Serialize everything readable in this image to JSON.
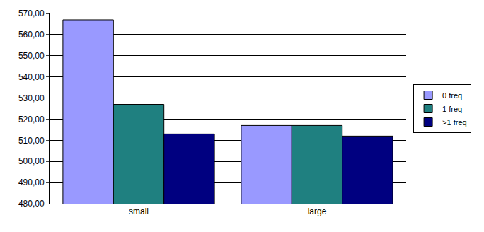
{
  "chart_data": {
    "type": "bar",
    "categories": [
      "small",
      "large"
    ],
    "series": [
      {
        "name": "0 freq",
        "color": "#9999ff",
        "values": [
          567,
          517
        ]
      },
      {
        "name": "1 freq",
        "color": "#1f8080",
        "values": [
          527,
          517
        ]
      },
      {
        "name": ">1 freq",
        "color": "#000080",
        "values": [
          513,
          512
        ]
      }
    ],
    "ylim": [
      480,
      570
    ],
    "yticks": [
      {
        "value": 480,
        "label": "480,00"
      },
      {
        "value": 490,
        "label": "490,00"
      },
      {
        "value": 500,
        "label": "500,00"
      },
      {
        "value": 510,
        "label": "510,00"
      },
      {
        "value": 520,
        "label": "520,00"
      },
      {
        "value": 530,
        "label": "530,00"
      },
      {
        "value": 540,
        "label": "540,00"
      },
      {
        "value": 550,
        "label": "550,00"
      },
      {
        "value": 560,
        "label": "560,00"
      },
      {
        "value": 570,
        "label": "570,00"
      }
    ],
    "grid": true,
    "legend": "right"
  }
}
